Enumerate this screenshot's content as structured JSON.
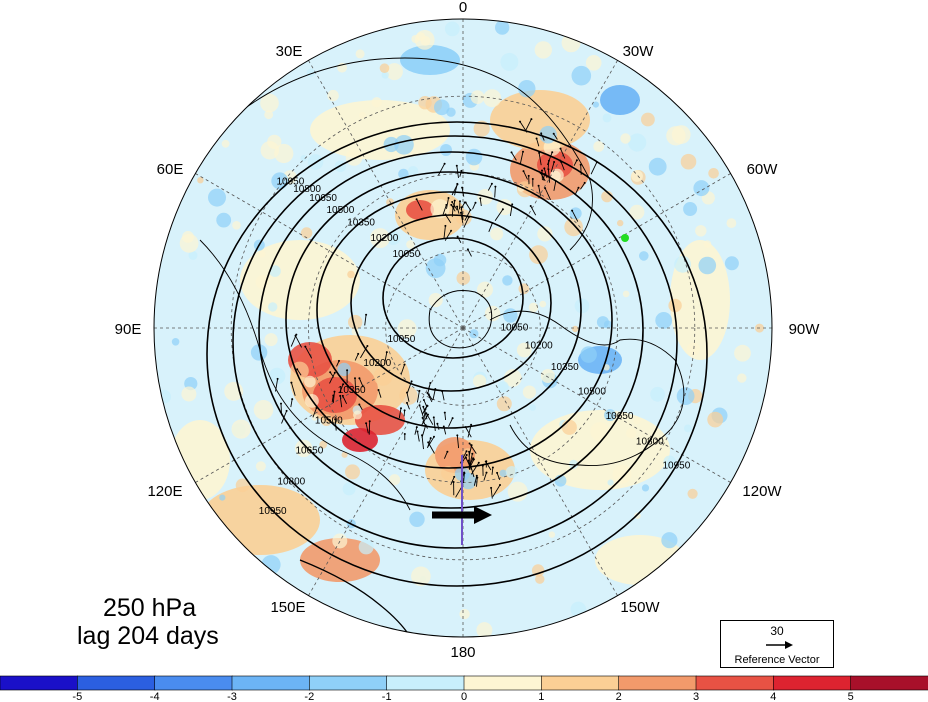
{
  "map": {
    "projection": "north-polar-stereographic",
    "longitude_labels": [
      "0",
      "30W",
      "60W",
      "90W",
      "120W",
      "150W",
      "180",
      "150E",
      "120E",
      "90E",
      "60E",
      "30E"
    ],
    "contour_levels": [
      "10050",
      "10200",
      "10350",
      "10500",
      "10650",
      "10800",
      "10950"
    ]
  },
  "title": {
    "level": "250 hPa",
    "lag": "lag 204 days"
  },
  "reference_vector": {
    "value": "30",
    "label": "Reference Vector"
  },
  "colorbar": {
    "ticks": [
      "-5",
      "-4",
      "-3",
      "-2",
      "-1",
      "0",
      "1",
      "2",
      "3",
      "4",
      "5"
    ],
    "colors": [
      "#1a10c8",
      "#2b5fe0",
      "#4a8cef",
      "#6cb4f5",
      "#8fd0f8",
      "#c8effc",
      "#fdf5d3",
      "#fbcf95",
      "#f29a6b",
      "#e85244",
      "#dd2330",
      "#a8102a"
    ]
  },
  "accent_colors": {
    "marker_green": "#22dd22",
    "anomaly_red": "#e43a33",
    "anomaly_blue": "#6cc4f0"
  }
}
